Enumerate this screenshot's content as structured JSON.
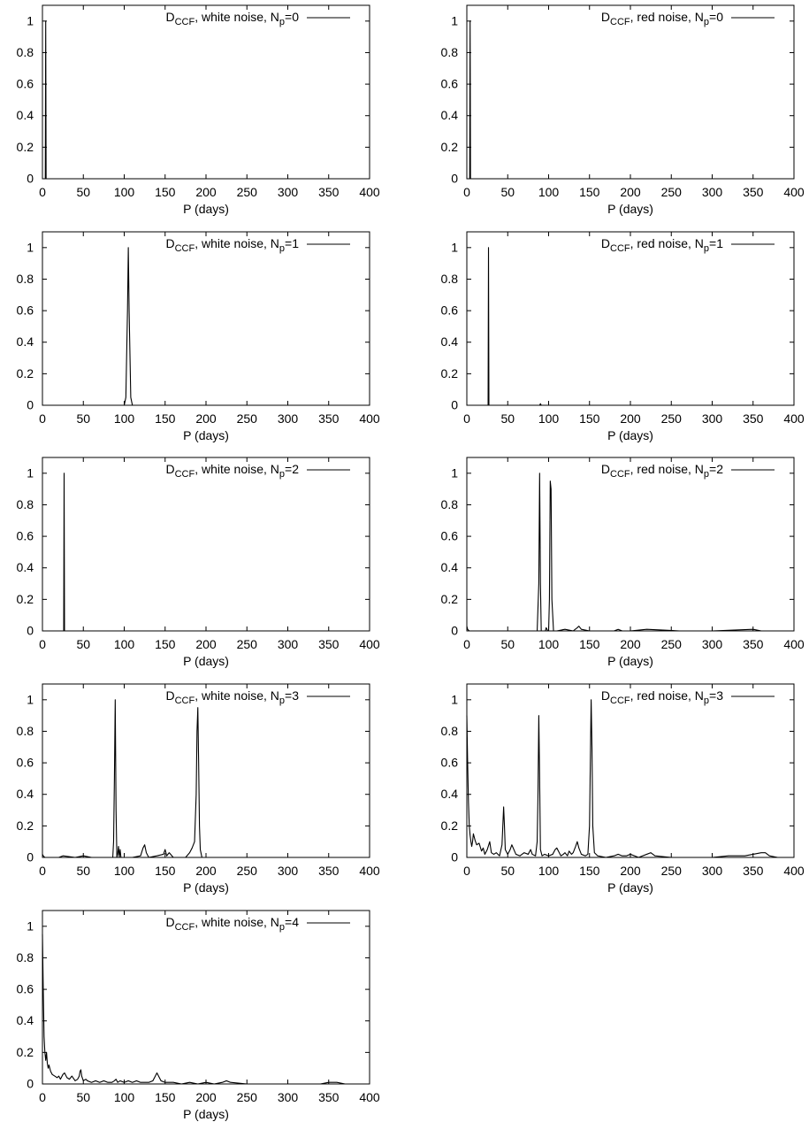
{
  "figure": {
    "x_ticks": [
      "0",
      "50",
      "100",
      "150",
      "200",
      "250",
      "300",
      "350",
      "400"
    ],
    "y_ticks": [
      "0",
      "0.2",
      "0.4",
      "0.6",
      "0.8",
      "1"
    ],
    "x_label": "P (days)"
  },
  "chart_data": [
    {
      "type": "line",
      "legend": {
        "base": "D",
        "sub": "CCF",
        "mid": ", white noise, N",
        "sub2": "p",
        "tail": "=0"
      },
      "xlabel": "P (days)",
      "xlim": [
        0,
        400
      ],
      "ylim": [
        0,
        1.1
      ],
      "series": [
        {
          "x": [
            0,
            3.5,
            4,
            4.5,
            6,
            400
          ],
          "y": [
            0,
            0,
            1,
            0,
            0,
            0
          ]
        }
      ]
    },
    {
      "type": "line",
      "legend": {
        "base": "D",
        "sub": "CCF",
        "mid": ", red noise, N",
        "sub2": "p",
        "tail": "=0"
      },
      "xlabel": "P (days)",
      "xlim": [
        0,
        400
      ],
      "ylim": [
        0,
        1.1
      ],
      "series": [
        {
          "x": [
            0,
            3.5,
            4,
            4.5,
            6,
            400
          ],
          "y": [
            0,
            0,
            1,
            0,
            0,
            0
          ]
        }
      ]
    },
    {
      "type": "line",
      "legend": {
        "base": "D",
        "sub": "CCF",
        "mid": ", white noise, N",
        "sub2": "p",
        "tail": "=1"
      },
      "xlabel": "P (days)",
      "xlim": [
        0,
        400
      ],
      "ylim": [
        0,
        1.1
      ],
      "series": [
        {
          "x": [
            0,
            100,
            102,
            104,
            105,
            106,
            108,
            110,
            400
          ],
          "y": [
            0,
            0,
            0.05,
            0.6,
            1.0,
            0.6,
            0.05,
            0,
            0
          ]
        }
      ]
    },
    {
      "type": "line",
      "legend": {
        "base": "D",
        "sub": "CCF",
        "mid": ", red noise, N",
        "sub2": "p",
        "tail": "=1"
      },
      "xlabel": "P (days)",
      "xlim": [
        0,
        400
      ],
      "ylim": [
        0,
        1.1
      ],
      "series": [
        {
          "x": [
            0,
            26,
            26.5,
            27,
            28,
            89,
            90,
            91,
            400
          ],
          "y": [
            0,
            0,
            1.0,
            0,
            0,
            0,
            0.01,
            0,
            0
          ]
        }
      ]
    },
    {
      "type": "line",
      "legend": {
        "base": "D",
        "sub": "CCF",
        "mid": ", white noise, N",
        "sub2": "p",
        "tail": "=2"
      },
      "xlabel": "P (days)",
      "xlim": [
        0,
        400
      ],
      "ylim": [
        0,
        1.1
      ],
      "series": [
        {
          "x": [
            0,
            26,
            26.5,
            27,
            28,
            400
          ],
          "y": [
            0,
            0,
            1.0,
            0,
            0,
            0
          ]
        }
      ]
    },
    {
      "type": "line",
      "legend": {
        "base": "D",
        "sub": "CCF",
        "mid": ", red noise, N",
        "sub2": "p",
        "tail": "=2"
      },
      "xlabel": "P (days)",
      "xlim": [
        0,
        400
      ],
      "ylim": [
        0,
        1.1
      ],
      "series": [
        {
          "x": [
            0,
            1,
            3,
            10,
            30,
            60,
            86,
            88,
            89,
            90,
            91,
            93,
            96,
            97,
            99,
            100,
            101,
            102,
            103,
            104,
            106,
            110,
            120,
            130,
            135,
            137,
            140,
            150,
            180,
            185,
            190,
            200,
            220,
            260,
            300,
            350,
            360,
            400
          ],
          "y": [
            0.03,
            0.01,
            0,
            0,
            0,
            0,
            0,
            0.3,
            1.0,
            0.3,
            0,
            0,
            0,
            0.02,
            0,
            0,
            0.2,
            0.95,
            0.9,
            0.2,
            0,
            0,
            0.01,
            0,
            0.02,
            0.03,
            0.01,
            0,
            0,
            0.01,
            0,
            0,
            0.01,
            0,
            0,
            0.01,
            0,
            0
          ]
        }
      ]
    },
    {
      "type": "line",
      "legend": {
        "base": "D",
        "sub": "CCF",
        "mid": ", white noise, N",
        "sub2": "p",
        "tail": "=3"
      },
      "xlabel": "P (days)",
      "xlim": [
        0,
        400
      ],
      "ylim": [
        0,
        1.1
      ],
      "series": [
        {
          "x": [
            0,
            1,
            3,
            20,
            25,
            40,
            50,
            60,
            86,
            87,
            88,
            89,
            90,
            91,
            92,
            93,
            94,
            95,
            96,
            97,
            100,
            110,
            120,
            123,
            125,
            127,
            130,
            140,
            148,
            150,
            152,
            155,
            160,
            175,
            180,
            183,
            186,
            188,
            189,
            190,
            191,
            192,
            193,
            195,
            200,
            210,
            250,
            300,
            400
          ],
          "y": [
            0.02,
            0.01,
            0,
            0,
            0.01,
            0,
            0.01,
            0,
            0,
            0.1,
            0.5,
            1.0,
            0.3,
            0,
            0.02,
            0.07,
            0,
            0.05,
            0,
            0,
            0,
            0,
            0.01,
            0.06,
            0.08,
            0.03,
            0,
            0.01,
            0.02,
            0.05,
            0.01,
            0.03,
            0,
            0,
            0.03,
            0.06,
            0.1,
            0.4,
            0.8,
            0.95,
            0.6,
            0.2,
            0.05,
            0,
            0,
            0,
            0,
            0,
            0
          ]
        }
      ]
    },
    {
      "type": "line",
      "legend": {
        "base": "D",
        "sub": "CCF",
        "mid": ", red noise, N",
        "sub2": "p",
        "tail": "=3"
      },
      "xlabel": "P (days)",
      "xlim": [
        0,
        400
      ],
      "ylim": [
        0,
        1.1
      ],
      "series": [
        {
          "x": [
            0,
            1,
            2,
            3,
            4,
            5,
            6,
            7,
            8,
            10,
            12,
            15,
            18,
            20,
            22,
            25,
            28,
            30,
            33,
            36,
            40,
            43,
            44,
            45,
            46,
            47,
            50,
            53,
            55,
            60,
            65,
            70,
            75,
            78,
            80,
            84,
            86,
            87,
            88,
            89,
            90,
            92,
            95,
            100,
            105,
            108,
            110,
            113,
            115,
            118,
            120,
            123,
            125,
            128,
            130,
            133,
            135,
            137,
            140,
            145,
            148,
            150,
            151,
            152,
            153,
            154,
            156,
            160,
            170,
            180,
            185,
            190,
            195,
            200,
            210,
            220,
            225,
            230,
            250,
            280,
            300,
            320,
            340,
            350,
            360,
            365,
            370,
            380,
            400
          ],
          "y": [
            0.9,
            0.6,
            0.35,
            0.2,
            0.14,
            0.1,
            0.07,
            0.1,
            0.15,
            0.11,
            0.08,
            0.09,
            0.04,
            0.06,
            0.02,
            0.05,
            0.1,
            0.03,
            0.02,
            0.03,
            0.01,
            0.08,
            0.2,
            0.32,
            0.2,
            0.05,
            0.02,
            0.05,
            0.08,
            0.02,
            0.01,
            0.03,
            0.02,
            0.05,
            0.02,
            0.01,
            0.1,
            0.4,
            0.9,
            0.5,
            0.05,
            0.01,
            0.02,
            0.01,
            0.02,
            0.05,
            0.06,
            0.03,
            0.01,
            0.02,
            0.03,
            0.01,
            0.04,
            0.02,
            0.03,
            0.07,
            0.1,
            0.06,
            0.02,
            0.01,
            0.02,
            0.2,
            0.6,
            1.0,
            0.7,
            0.2,
            0.03,
            0.01,
            0,
            0.01,
            0.02,
            0.01,
            0.01,
            0.02,
            0,
            0.02,
            0.03,
            0.01,
            0,
            0,
            0,
            0.01,
            0.01,
            0.02,
            0.03,
            0.03,
            0.01,
            0,
            0
          ]
        }
      ]
    },
    {
      "type": "line",
      "legend": {
        "base": "D",
        "sub": "CCF",
        "mid": ", white noise, N",
        "sub2": "p",
        "tail": "=4"
      },
      "xlabel": "P (days)",
      "xlim": [
        0,
        400
      ],
      "ylim": [
        0,
        1.1
      ],
      "series": [
        {
          "x": [
            0,
            1,
            2,
            3,
            4,
            5,
            6,
            7,
            8,
            10,
            12,
            15,
            18,
            20,
            22,
            25,
            27,
            30,
            33,
            36,
            40,
            43,
            45,
            46,
            47,
            48,
            50,
            53,
            55,
            60,
            65,
            70,
            75,
            80,
            85,
            88,
            90,
            92,
            95,
            100,
            105,
            110,
            115,
            120,
            125,
            130,
            135,
            138,
            140,
            142,
            145,
            150,
            160,
            170,
            180,
            190,
            200,
            210,
            220,
            225,
            230,
            250,
            280,
            300,
            320,
            340,
            350,
            360,
            370,
            400
          ],
          "y": [
            0.95,
            0.6,
            0.3,
            0.2,
            0.15,
            0.2,
            0.13,
            0.1,
            0.12,
            0.08,
            0.06,
            0.05,
            0.04,
            0.05,
            0.03,
            0.06,
            0.07,
            0.04,
            0.03,
            0.05,
            0.02,
            0.03,
            0.05,
            0.08,
            0.09,
            0.05,
            0.02,
            0.03,
            0.02,
            0.01,
            0.02,
            0.01,
            0.02,
            0.01,
            0.01,
            0.02,
            0.03,
            0.01,
            0.02,
            0.01,
            0.02,
            0.01,
            0.02,
            0.01,
            0.01,
            0.01,
            0.02,
            0.05,
            0.07,
            0.05,
            0.02,
            0.01,
            0.01,
            0,
            0.01,
            0,
            0.01,
            0,
            0.01,
            0.02,
            0.01,
            0,
            0,
            0,
            0,
            0,
            0.01,
            0.01,
            0,
            0
          ]
        }
      ]
    }
  ]
}
